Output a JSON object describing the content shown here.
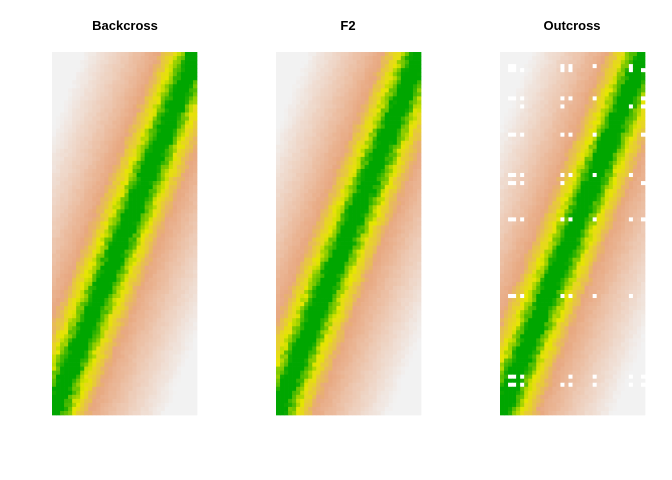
{
  "chart_data": [
    {
      "type": "heatmap",
      "title": "Backcross",
      "pattern": "diagonal-band",
      "missing_cells": false,
      "grid": false,
      "legend": "none",
      "colors": {
        "band_center": "#00a600",
        "band_mid": "#e6e600",
        "shoulder": "#e8a880",
        "far": "#f2f2f2"
      }
    },
    {
      "type": "heatmap",
      "title": "F2",
      "pattern": "diagonal-band",
      "missing_cells": false,
      "grid": false,
      "legend": "none",
      "colors": {
        "band_center": "#00a600",
        "band_mid": "#e6e600",
        "shoulder": "#e8a880",
        "far": "#f2f2f2"
      }
    },
    {
      "type": "heatmap",
      "title": "Outcross",
      "pattern": "diagonal-band",
      "missing_cells": true,
      "grid": false,
      "legend": "none",
      "colors": {
        "band_center": "#00a600",
        "band_mid": "#e6e600",
        "shoulder": "#e8a880",
        "far": "#f2f2f2",
        "missing": "#ffffff"
      }
    }
  ]
}
